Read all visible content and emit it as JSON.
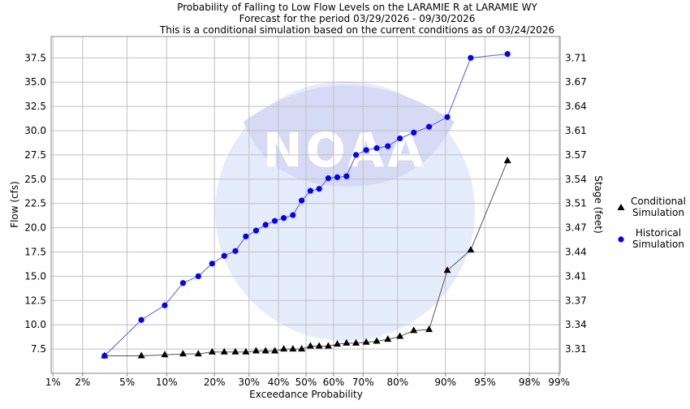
{
  "chart_data": {
    "type": "line",
    "title": "Probability of Falling to Low Flow Levels on the LARAMIE R at LARAMIE WY",
    "subtitle1": "Forecast for the period 03/29/2026 - 09/30/2026",
    "subtitle2": "This is a conditional simulation based on the current conditions as of 03/24/2026",
    "xlabel": "Exceedance Probability",
    "ylabel": "Flow (cfs)",
    "ylabel_right": "Stage (feet)",
    "x_scale": "normal-probability",
    "x_ticks": [
      "1%",
      "2%",
      "5%",
      "10%",
      "20%",
      "30%",
      "40%",
      "50%",
      "60%",
      "70%",
      "80%",
      "90%",
      "95%",
      "98%",
      "99%"
    ],
    "x_tick_values": [
      0.01,
      0.02,
      0.05,
      0.1,
      0.2,
      0.3,
      0.4,
      0.5,
      0.6,
      0.7,
      0.8,
      0.9,
      0.95,
      0.98,
      0.99
    ],
    "y_ticks": [
      "7.5",
      "10.0",
      "12.5",
      "15.0",
      "17.5",
      "20.0",
      "22.5",
      "25.0",
      "27.5",
      "30.0",
      "32.5",
      "35.0",
      "37.5"
    ],
    "y_tick_values": [
      7.5,
      10,
      12.5,
      15,
      17.5,
      20,
      22.5,
      25,
      27.5,
      30,
      32.5,
      35,
      37.5
    ],
    "y_right_ticks": [
      "3.31",
      "3.34",
      "3.37",
      "3.41",
      "3.44",
      "3.47",
      "3.51",
      "3.54",
      "3.57",
      "3.61",
      "3.64",
      "3.67",
      "3.71"
    ],
    "ylim": [
      5.0,
      39.7
    ],
    "grid": true,
    "legend_position": "right",
    "x": [
      0.032,
      0.065,
      0.097,
      0.129,
      0.161,
      0.194,
      0.226,
      0.258,
      0.29,
      0.323,
      0.355,
      0.387,
      0.419,
      0.452,
      0.484,
      0.516,
      0.548,
      0.581,
      0.613,
      0.645,
      0.677,
      0.71,
      0.742,
      0.774,
      0.806,
      0.839,
      0.871,
      0.903,
      0.935,
      0.968
    ],
    "series": [
      {
        "name": "Conditional Simulation",
        "legend": [
          "Conditional",
          "Simulation"
        ],
        "color": "#000000",
        "line_color": "#555555",
        "marker": "triangle",
        "values": [
          6.8,
          6.8,
          6.9,
          7.0,
          7.0,
          7.2,
          7.2,
          7.2,
          7.2,
          7.3,
          7.3,
          7.3,
          7.5,
          7.5,
          7.5,
          7.8,
          7.8,
          7.8,
          8.0,
          8.1,
          8.1,
          8.2,
          8.3,
          8.5,
          8.8,
          9.4,
          9.5,
          15.6,
          17.7,
          26.9
        ]
      },
      {
        "name": "Historical Simulation",
        "legend": [
          "Historical",
          "Simulation"
        ],
        "color": "#0000ff",
        "line_color": "#5555ff",
        "marker": "circle",
        "values": [
          6.8,
          10.5,
          12.0,
          14.3,
          15.0,
          16.3,
          17.1,
          17.6,
          19.1,
          19.7,
          20.3,
          20.7,
          21.0,
          21.3,
          22.8,
          23.8,
          24.0,
          25.1,
          25.2,
          25.3,
          27.5,
          28.0,
          28.2,
          28.4,
          29.2,
          29.8,
          30.4,
          31.4,
          37.5,
          37.9
        ]
      }
    ]
  }
}
